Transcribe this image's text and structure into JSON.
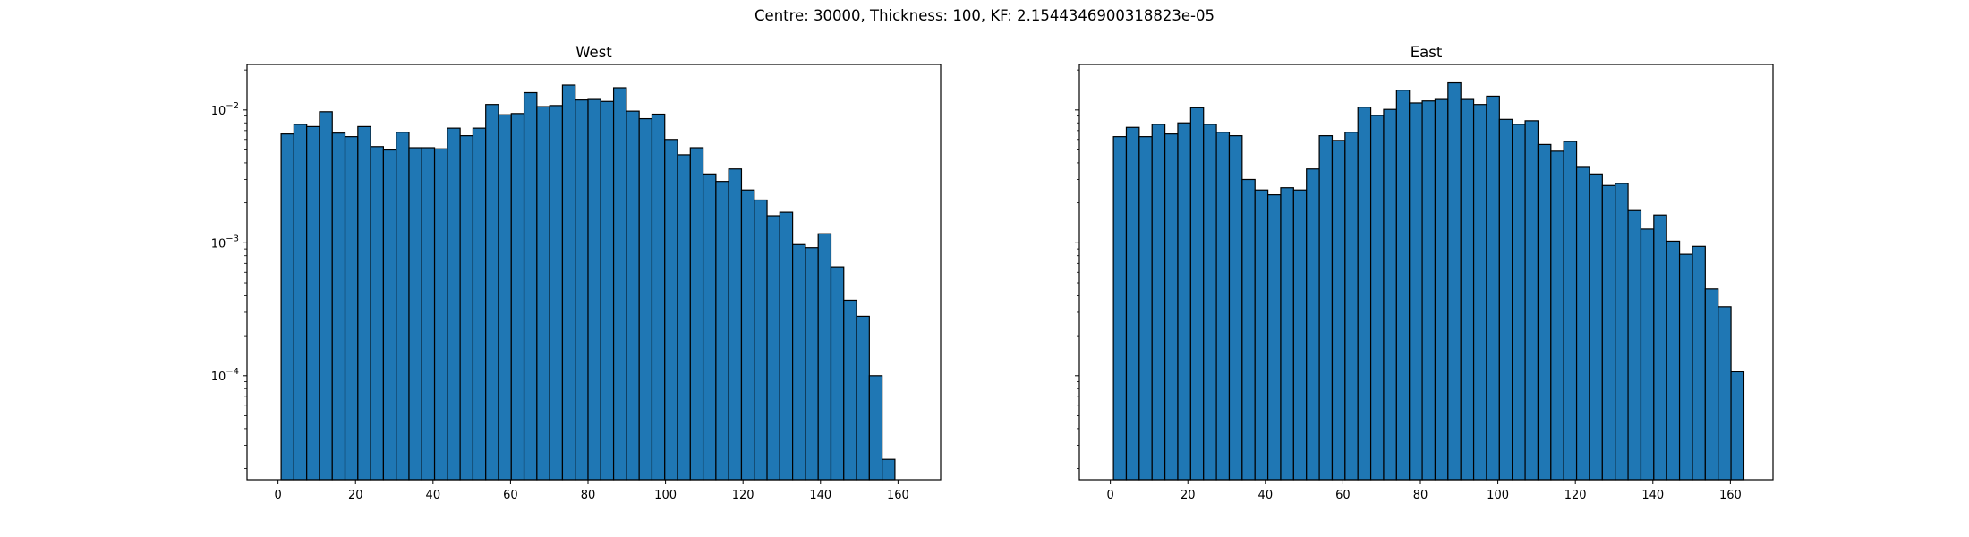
{
  "figure": {
    "suptitle": "Centre: 30000, Thickness: 100, KF: 2.1544346900318823e-05"
  },
  "chart_data": [
    {
      "type": "bar",
      "title": "West",
      "xlabel": "",
      "ylabel": "",
      "y_scale": "log",
      "xlim": [
        -8,
        171
      ],
      "ylim": [
        1.65e-05,
        0.022
      ],
      "x_ticks": [
        0,
        20,
        40,
        60,
        80,
        100,
        120,
        140,
        160
      ],
      "y_ticks": [
        {
          "value": 0.0001,
          "base": "10",
          "exp": "−4"
        },
        {
          "value": 0.001,
          "base": "10",
          "exp": "−3"
        },
        {
          "value": 0.01,
          "base": "10",
          "exp": "−2"
        }
      ],
      "bin_start": 0.8,
      "bin_width": 3.3,
      "values": [
        0.0066,
        0.0078,
        0.0075,
        0.0097,
        0.0067,
        0.0063,
        0.0075,
        0.0053,
        0.005,
        0.0068,
        0.0052,
        0.0052,
        0.0051,
        0.0073,
        0.0064,
        0.0073,
        0.011,
        0.0092,
        0.0094,
        0.0135,
        0.0106,
        0.0108,
        0.0154,
        0.0119,
        0.012,
        0.0116,
        0.0147,
        0.0098,
        0.0086,
        0.0093,
        0.006,
        0.0046,
        0.0052,
        0.0033,
        0.0029,
        0.0036,
        0.0025,
        0.0021,
        0.0016,
        0.0017,
        0.00097,
        0.00092,
        0.00117,
        0.00066,
        0.00037,
        0.00028,
        0.0001,
        2.35e-05
      ],
      "bar_color": "#1f77b4",
      "edge_color": "#000000"
    },
    {
      "type": "bar",
      "title": "East",
      "xlabel": "",
      "ylabel": "",
      "y_scale": "log",
      "xlim": [
        -8,
        171
      ],
      "ylim": [
        1.65e-05,
        0.022
      ],
      "x_ticks": [
        0,
        20,
        40,
        60,
        80,
        100,
        120,
        140,
        160
      ],
      "y_ticks": [],
      "bin_start": 0.8,
      "bin_width": 3.32,
      "values": [
        0.0063,
        0.0074,
        0.0063,
        0.0078,
        0.0066,
        0.008,
        0.0104,
        0.0078,
        0.0068,
        0.0064,
        0.003,
        0.0025,
        0.0023,
        0.0026,
        0.0025,
        0.0036,
        0.0064,
        0.0059,
        0.0068,
        0.0105,
        0.0091,
        0.0101,
        0.0141,
        0.0113,
        0.0117,
        0.012,
        0.016,
        0.012,
        0.011,
        0.0127,
        0.0085,
        0.0078,
        0.0083,
        0.0055,
        0.0049,
        0.0058,
        0.0037,
        0.0033,
        0.0027,
        0.0028,
        0.00175,
        0.00127,
        0.00162,
        0.00103,
        0.00082,
        0.00094,
        0.00045,
        0.00033,
        0.000107
      ],
      "bar_color": "#1f77b4",
      "edge_color": "#000000"
    }
  ]
}
